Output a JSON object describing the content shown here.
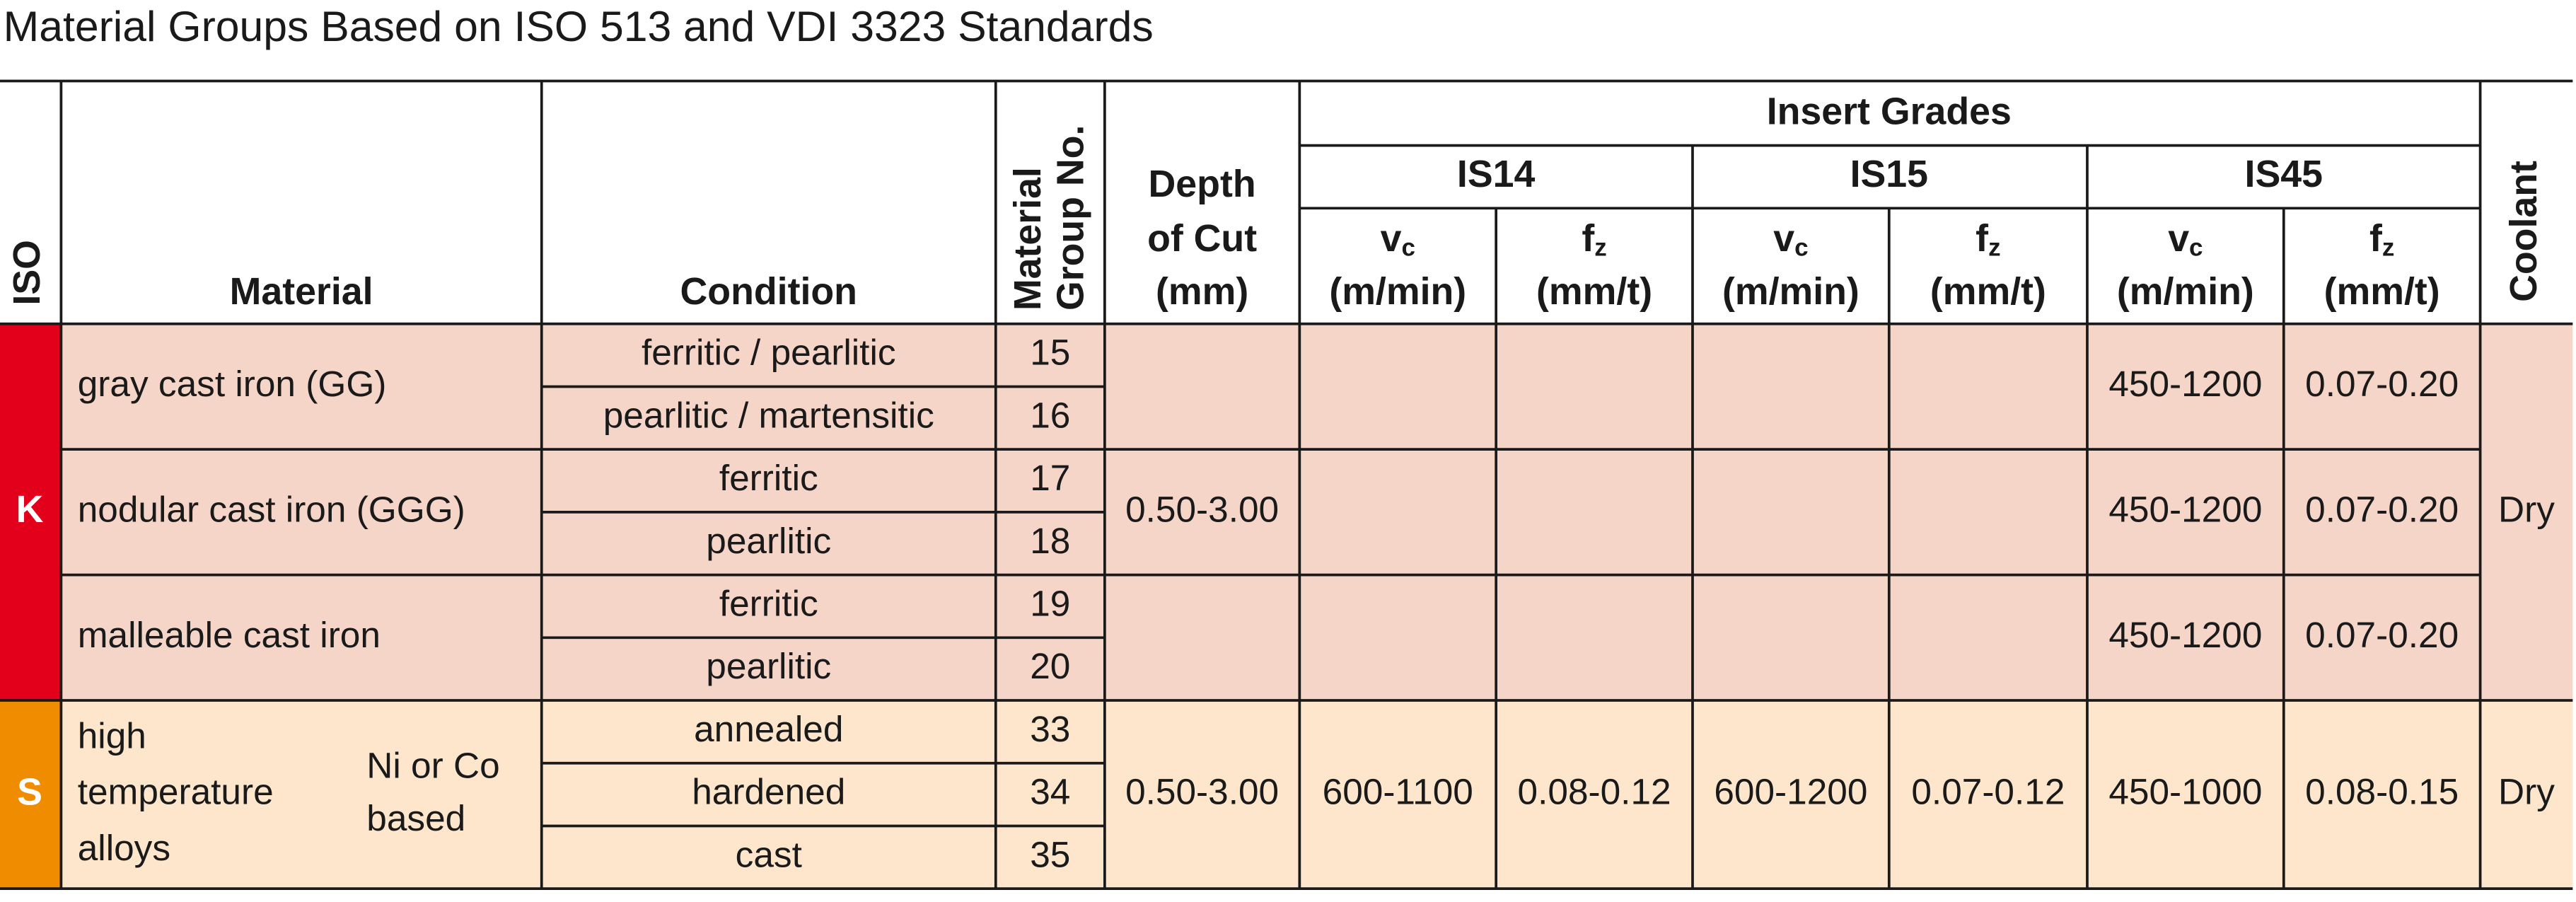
{
  "title": "Material Groups Based on ISO 513 and VDI 3323 Standards",
  "header": {
    "iso": "ISO",
    "material": "Material",
    "condition": "Condition",
    "group_no": [
      "Material",
      "Group No."
    ],
    "depth": [
      "Depth",
      "of Cut",
      "(mm)"
    ],
    "insert_grades": "Insert Grades",
    "grades": [
      "IS14",
      "IS15",
      "IS45"
    ],
    "vc": {
      "symbol": "v",
      "sub": "c",
      "unit": "(m/min)"
    },
    "fz": {
      "symbol": "f",
      "sub": "z",
      "unit": "(mm/t)"
    },
    "coolant": "Coolant"
  },
  "groups": [
    {
      "iso": "K",
      "depth": "0.50-3.00",
      "coolant": "Dry",
      "materials": [
        {
          "name_lines": [
            "gray cast iron (GG)"
          ],
          "conditions": [
            {
              "condition": "ferritic / pearlitic",
              "group": 15
            },
            {
              "condition": "pearlitic / martensitic",
              "group": 16
            }
          ],
          "cutting": [
            [
              null,
              null
            ],
            [
              null,
              null
            ],
            [
              "450-1200",
              "0.07-0.20"
            ]
          ]
        },
        {
          "name_lines": [
            "nodular cast iron (GGG)"
          ],
          "conditions": [
            {
              "condition": "ferritic",
              "group": 17
            },
            {
              "condition": "pearlitic",
              "group": 18
            }
          ],
          "cutting": [
            [
              null,
              null
            ],
            [
              null,
              null
            ],
            [
              "450-1200",
              "0.07-0.20"
            ]
          ]
        },
        {
          "name_lines": [
            "malleable cast iron"
          ],
          "conditions": [
            {
              "condition": "ferritic",
              "group": 19
            },
            {
              "condition": "pearlitic",
              "group": 20
            }
          ],
          "cutting": [
            [
              null,
              null
            ],
            [
              null,
              null
            ],
            [
              "450-1200",
              "0.07-0.20"
            ]
          ]
        }
      ]
    },
    {
      "iso": "S",
      "depth": "0.50-3.00",
      "coolant": "Dry",
      "materials": [
        {
          "name_lines": [
            "high",
            "temperature",
            "alloys"
          ],
          "note_lines": [
            "Ni or Co",
            "based"
          ],
          "conditions": [
            {
              "condition": "annealed",
              "group": 33
            },
            {
              "condition": "hardened",
              "group": 34
            },
            {
              "condition": "cast",
              "group": 35
            }
          ],
          "cutting": [
            [
              "600-1100",
              "0.08-0.12"
            ],
            [
              "600-1200",
              "0.07-0.12"
            ],
            [
              "450-1000",
              "0.08-0.15"
            ]
          ]
        }
      ]
    }
  ]
}
